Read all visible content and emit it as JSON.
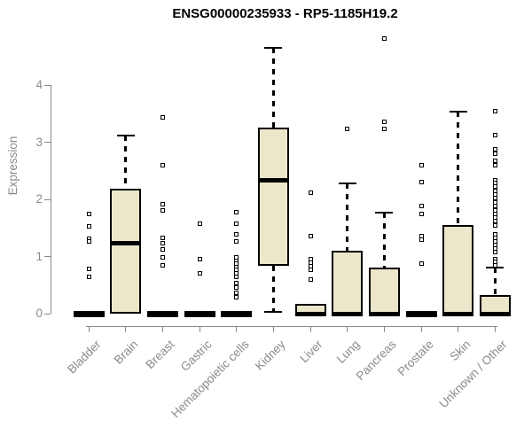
{
  "chart_data": {
    "type": "boxplot",
    "title": "ENSG00000235933 - RP5-1185H19.2",
    "ylabel": "Expression",
    "xlabel": "",
    "yticks": [
      0,
      1,
      2,
      3,
      4
    ],
    "ylim": [
      0,
      4.95
    ],
    "grid": false,
    "legend": false,
    "categories": [
      "Bladder",
      "Brain",
      "Breast",
      "Gastric",
      "Hematopoietic cells",
      "Kidney",
      "Liver",
      "Lung",
      "Pancreas",
      "Prostate",
      "Skin",
      "Unknown / Other"
    ],
    "boxes": [
      {
        "category": "Bladder",
        "q1": 0,
        "median": 0,
        "q3": 0,
        "whisker_low": 0,
        "whisker_high": 0,
        "outliers": [
          1.74,
          1.53,
          1.31,
          1.27,
          0.79,
          0.65
        ]
      },
      {
        "category": "Brain",
        "q1": 0,
        "median": 1.23,
        "q3": 2.19,
        "whisker_low": 0,
        "whisker_high": 3.12,
        "outliers": []
      },
      {
        "category": "Breast",
        "q1": 0,
        "median": 0,
        "q3": 0,
        "whisker_low": 0,
        "whisker_high": 0,
        "outliers": [
          3.43,
          2.6,
          1.92,
          1.8,
          1.33,
          1.24,
          1.12,
          0.99,
          0.85
        ]
      },
      {
        "category": "Gastric",
        "q1": 0,
        "median": 0,
        "q3": 0,
        "whisker_low": 0,
        "whisker_high": 0,
        "outliers": [
          1.58,
          0.95,
          0.7
        ]
      },
      {
        "category": "Hematopoietic cells",
        "q1": 0,
        "median": 0,
        "q3": 0,
        "whisker_low": 0,
        "whisker_high": 0,
        "outliers": [
          1.77,
          1.57,
          1.38,
          1.27,
          0.99,
          0.93,
          0.87,
          0.81,
          0.76,
          0.7,
          0.64,
          0.53,
          0.45,
          0.37,
          0.29
        ]
      },
      {
        "category": "Kidney",
        "q1": 0.84,
        "median": 2.34,
        "q3": 3.26,
        "whisker_low": 0.03,
        "whisker_high": 4.65,
        "outliers": []
      },
      {
        "category": "Liver",
        "q1": 0,
        "median": 0,
        "q3": 0.17,
        "whisker_low": 0,
        "whisker_high": 0.17,
        "outliers": [
          2.11,
          1.35,
          0.96,
          0.89,
          0.83,
          0.76,
          0.6
        ]
      },
      {
        "category": "Lung",
        "q1": 0,
        "median": 0,
        "q3": 1.1,
        "whisker_low": 0,
        "whisker_high": 2.28,
        "outliers": [
          3.24
        ]
      },
      {
        "category": "Pancreas",
        "q1": 0,
        "median": 0,
        "q3": 0.81,
        "whisker_low": 0,
        "whisker_high": 1.77,
        "outliers": [
          4.82,
          3.35,
          3.24
        ]
      },
      {
        "category": "Prostate",
        "q1": 0,
        "median": 0,
        "q3": 0,
        "whisker_low": 0,
        "whisker_high": 0,
        "outliers": [
          2.6,
          2.3,
          1.89,
          1.74,
          1.35,
          1.3,
          0.88
        ]
      },
      {
        "category": "Skin",
        "q1": 0,
        "median": 0,
        "q3": 1.55,
        "whisker_low": 0,
        "whisker_high": 3.53,
        "outliers": []
      },
      {
        "category": "Unknown / Other",
        "q1": 0,
        "median": 0,
        "q3": 0.33,
        "whisker_low": 0,
        "whisker_high": 0.81,
        "outliers": [
          3.55,
          3.12,
          2.88,
          2.8,
          2.67,
          2.6,
          2.34,
          2.28,
          2.22,
          2.15,
          2.08,
          2.03,
          1.95,
          1.88,
          1.8,
          1.74,
          1.68,
          1.62,
          1.55,
          1.38,
          1.32,
          1.26,
          1.2,
          1.14,
          1.08,
          0.96,
          0.9,
          0.85
        ]
      }
    ],
    "colors": {
      "box_fill": "#ECE7CB",
      "box_border": "#000000",
      "median": "#000000",
      "whisker": "#000000",
      "outlier": "#000000",
      "axis": "#8a8a8a",
      "tick_label": "#8a8a8a",
      "title": "#000000",
      "background": "#ffffff"
    }
  }
}
